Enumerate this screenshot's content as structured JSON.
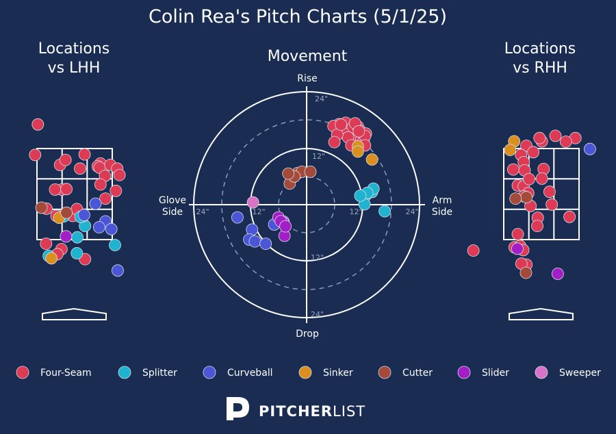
{
  "title": "Colin Rea's Pitch Charts (5/1/25)",
  "panels": {
    "lhh": {
      "title_line1": "Locations",
      "title_line2": "vs LHH"
    },
    "movement": {
      "title": "Movement"
    },
    "rhh": {
      "title_line1": "Locations",
      "title_line2": "vs RHH"
    }
  },
  "movement_axes": {
    "top": "Rise",
    "bottom": "Drop",
    "left_line1": "Glove",
    "left_line2": "Side",
    "right_line1": "Arm",
    "right_line2": "Side",
    "ring_labels": [
      "12\"",
      "24\""
    ]
  },
  "brand": {
    "bold": "PITCHER",
    "light": "LIST"
  },
  "colors": {
    "background": "#1a2c52",
    "Four-Seam": "#dc3a55",
    "Splitter": "#1fb3cf",
    "Curveball": "#4b56d6",
    "Sinker": "#d9901f",
    "Cutter": "#a44a3b",
    "Slider": "#a21fc8",
    "Sweeper": "#d873c7"
  },
  "chart_data": [
    {
      "type": "scatter",
      "name": "Movement",
      "xlabel": "Glove Side / Arm Side (in)",
      "ylabel": "Drop / Rise (in)",
      "xlim": [
        -30,
        30
      ],
      "ylim": [
        -30,
        30
      ],
      "rings": [
        6,
        12,
        18,
        24
      ],
      "series": [
        {
          "name": "Four-Seam",
          "points": [
            [
              6.9,
              17.1
            ],
            [
              8.3,
              17.4
            ],
            [
              9.8,
              16.4
            ],
            [
              10.9,
              16.6
            ],
            [
              11.4,
              15.7
            ],
            [
              10.1,
              14.0
            ],
            [
              11.6,
              13.8
            ],
            [
              12.6,
              15.1
            ],
            [
              7.8,
              15.2
            ],
            [
              5.7,
              16.7
            ],
            [
              8.8,
              14.3
            ],
            [
              12.1,
              13.5
            ],
            [
              6.5,
              14.9
            ],
            [
              9.5,
              12.6
            ],
            [
              12.4,
              14.6
            ],
            [
              10.3,
              17.3
            ],
            [
              11.1,
              15.6
            ],
            [
              7.3,
              17.0
            ],
            [
              5.9,
              13.3
            ],
            [
              12.4,
              12.6
            ]
          ]
        },
        {
          "name": "Splitter",
          "points": [
            [
              12.6,
              2.0
            ],
            [
              13.9,
              2.7
            ],
            [
              14.2,
              3.4
            ],
            [
              12.9,
              2.5
            ],
            [
              16.6,
              -1.4
            ],
            [
              12.3,
              0.1
            ],
            [
              11.4,
              1.9
            ]
          ]
        },
        {
          "name": "Curveball",
          "points": [
            [
              -14.7,
              -2.7
            ],
            [
              -11.6,
              -5.3
            ],
            [
              -12.2,
              -7.4
            ],
            [
              -11.0,
              -7.8
            ],
            [
              -8.7,
              -8.3
            ],
            [
              -6.9,
              -4.2
            ]
          ]
        },
        {
          "name": "Sinker",
          "points": [
            [
              13.9,
              9.6
            ],
            [
              10.9,
              12.4
            ],
            [
              10.9,
              11.3
            ]
          ]
        },
        {
          "name": "Cutter",
          "points": [
            [
              -3.6,
              4.5
            ],
            [
              -1.9,
              6.7
            ],
            [
              -1.0,
              7.0
            ],
            [
              0.8,
              7.0
            ],
            [
              -2.6,
              6.0
            ],
            [
              -3.9,
              6.6
            ]
          ]
        },
        {
          "name": "Slider",
          "points": [
            [
              -6.0,
              -2.7
            ],
            [
              -4.9,
              -3.6
            ],
            [
              -5.0,
              -3.8
            ],
            [
              -4.7,
              -6.6
            ],
            [
              -5.5,
              -3.5
            ],
            [
              -4.5,
              -4.6
            ]
          ]
        },
        {
          "name": "Sweeper",
          "points": [
            [
              -11.4,
              0.5
            ]
          ]
        }
      ]
    },
    {
      "type": "scatter",
      "name": "Locations vs LHH",
      "xlim": [
        -1.5,
        1.5
      ],
      "ylim": [
        0.7,
        4.2
      ],
      "strike_zone": {
        "x": [
          -0.83,
          0.83
        ],
        "z": [
          1.5,
          3.5
        ]
      },
      "series": [
        {
          "name": "Four-Seam",
          "points": [
            [
              -0.81,
              4.03
            ],
            [
              -0.87,
              3.36
            ],
            [
              -0.32,
              3.14
            ],
            [
              -0.2,
              3.25
            ],
            [
              0.22,
              3.37
            ],
            [
              0.12,
              3.06
            ],
            [
              0.57,
              3.17
            ],
            [
              0.51,
              3.11
            ],
            [
              0.55,
              3.08
            ],
            [
              0.79,
              3.14
            ],
            [
              0.94,
              3.06
            ],
            [
              0.99,
              2.92
            ],
            [
              0.67,
              2.9
            ],
            [
              0.57,
              2.71
            ],
            [
              0.91,
              2.57
            ],
            [
              0.68,
              2.4
            ],
            [
              -0.28,
              2.6
            ],
            [
              -0.43,
              2.6
            ],
            [
              -0.18,
              2.61
            ],
            [
              -0.62,
              2.18
            ],
            [
              -0.4,
              2.02
            ],
            [
              -0.23,
              2.05
            ],
            [
              -0.04,
              2.02
            ],
            [
              0.05,
              2.17
            ],
            [
              -0.63,
              1.41
            ],
            [
              -0.29,
              1.29
            ],
            [
              0.23,
              1.07
            ],
            [
              -0.38,
              1.18
            ]
          ]
        },
        {
          "name": "Splitter",
          "points": [
            [
              -0.57,
              1.14
            ],
            [
              0.05,
              1.2
            ],
            [
              0.89,
              1.38
            ],
            [
              0.06,
              1.55
            ],
            [
              0.23,
              1.8
            ],
            [
              0.18,
              2.01
            ],
            [
              -0.24,
              2.01
            ],
            [
              0.13,
              2.0
            ]
          ]
        },
        {
          "name": "Curveball",
          "points": [
            [
              0.46,
              2.29
            ],
            [
              0.68,
              1.9
            ],
            [
              0.95,
              0.82
            ],
            [
              0.54,
              1.77
            ],
            [
              0.81,
              1.73
            ],
            [
              0.21,
              2.04
            ]
          ]
        },
        {
          "name": "Sinker",
          "points": [
            [
              -0.51,
              1.09
            ],
            [
              -0.34,
              1.98
            ]
          ]
        },
        {
          "name": "Cutter",
          "points": [
            [
              -0.73,
              2.2
            ],
            [
              -0.18,
              2.09
            ]
          ]
        },
        {
          "name": "Slider",
          "points": [
            [
              -0.19,
              1.57
            ]
          ]
        },
        {
          "name": "Sweeper",
          "points": []
        }
      ]
    },
    {
      "type": "scatter",
      "name": "Locations vs RHH",
      "xlim": [
        -1.5,
        1.5
      ],
      "ylim": [
        0.7,
        4.2
      ],
      "strike_zone": {
        "x": [
          -0.83,
          0.83
        ],
        "z": [
          1.5,
          3.5
        ]
      },
      "series": [
        {
          "name": "Four-Seam",
          "points": [
            [
              0.31,
              3.78
            ],
            [
              0.75,
              3.73
            ],
            [
              0.54,
              3.65
            ],
            [
              0.01,
              3.66
            ],
            [
              -0.04,
              3.73
            ],
            [
              -0.33,
              3.56
            ],
            [
              -0.45,
              3.36
            ],
            [
              -0.18,
              3.42
            ],
            [
              -0.39,
              3.2
            ],
            [
              -0.62,
              3.04
            ],
            [
              0.05,
              3.05
            ],
            [
              -0.37,
              3.02
            ],
            [
              -0.52,
              2.69
            ],
            [
              -0.39,
              2.67
            ],
            [
              0.01,
              2.84
            ],
            [
              -0.29,
              2.52
            ],
            [
              -0.27,
              2.83
            ],
            [
              -0.39,
              2.45
            ],
            [
              0.18,
              2.55
            ],
            [
              0.23,
              2.27
            ],
            [
              -0.24,
              2.24
            ],
            [
              0.62,
              2.0
            ],
            [
              -0.08,
              1.98
            ],
            [
              -0.09,
              1.8
            ],
            [
              -0.52,
              1.62
            ],
            [
              -0.59,
              1.33
            ],
            [
              -0.47,
              1.36
            ],
            [
              -0.4,
              1.27
            ],
            [
              -1.5,
              1.26
            ],
            [
              -0.33,
              0.95
            ],
            [
              -0.44,
              0.97
            ]
          ]
        },
        {
          "name": "Splitter",
          "points": []
        },
        {
          "name": "Curveball",
          "points": [
            [
              1.07,
              3.49
            ]
          ]
        },
        {
          "name": "Sinker",
          "points": [
            [
              -0.6,
              3.66
            ],
            [
              -0.69,
              3.47
            ]
          ]
        },
        {
          "name": "Cutter",
          "points": [
            [
              -0.33,
              2.43
            ],
            [
              -0.57,
              2.4
            ],
            [
              -0.34,
              0.77
            ]
          ]
        },
        {
          "name": "Slider",
          "points": [
            [
              -0.53,
              1.3
            ],
            [
              0.36,
              0.75
            ]
          ]
        },
        {
          "name": "Sweeper",
          "points": []
        }
      ]
    }
  ],
  "legend": [
    {
      "label": "Four-Seam",
      "color": "#dc3a55"
    },
    {
      "label": "Splitter",
      "color": "#1fb3cf"
    },
    {
      "label": "Curveball",
      "color": "#4b56d6"
    },
    {
      "label": "Sinker",
      "color": "#d9901f"
    },
    {
      "label": "Cutter",
      "color": "#a44a3b"
    },
    {
      "label": "Slider",
      "color": "#a21fc8"
    },
    {
      "label": "Sweeper",
      "color": "#d873c7"
    }
  ]
}
